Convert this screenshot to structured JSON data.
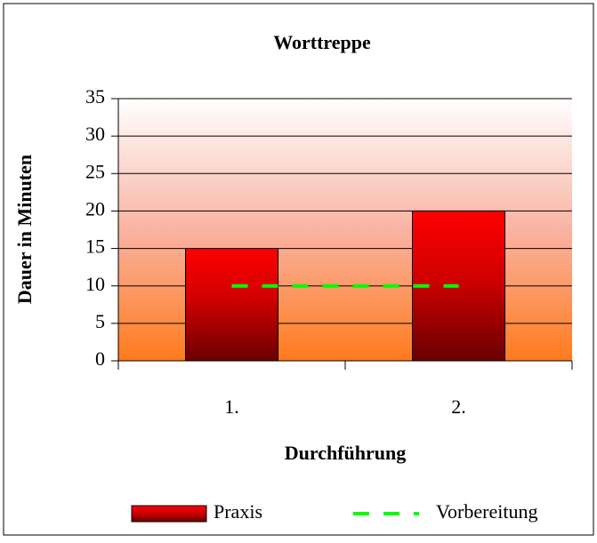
{
  "chart_data": {
    "type": "bar",
    "title": "Worttreppe",
    "x_label": "Durchführung",
    "y_label": "Dauer in Minuten",
    "categories": [
      "1.",
      "2."
    ],
    "series": [
      {
        "name": "Praxis",
        "type": "bar",
        "color": "#ff0000",
        "values": [
          15,
          20
        ]
      },
      {
        "name": "Vorbereitung",
        "type": "line",
        "color": "#00ff00",
        "values": [
          10,
          10
        ]
      }
    ],
    "ylim": [
      0,
      35
    ],
    "yticks": [
      0,
      5,
      10,
      15,
      20,
      25,
      30,
      35
    ],
    "grid": true
  }
}
